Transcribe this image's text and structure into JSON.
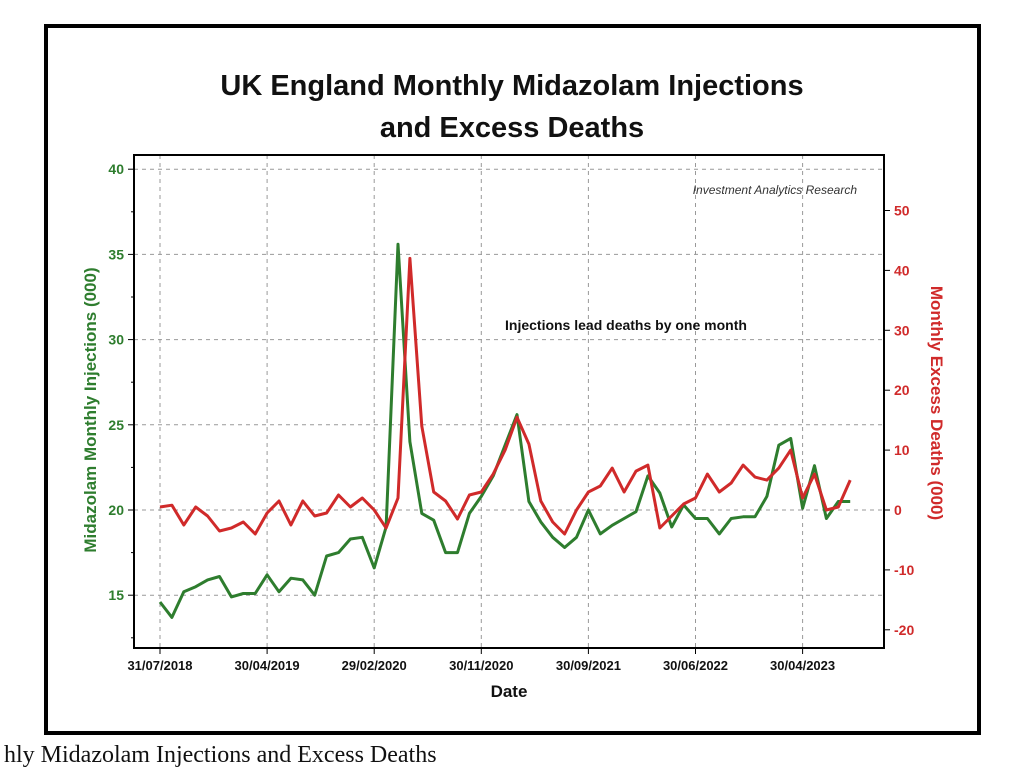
{
  "chart_data": {
    "type": "line",
    "title": [
      "UK England Monthly Midazolam Injections",
      "and Excess Deaths"
    ],
    "xlabel": "Date",
    "ylabel_left": "Midazolam Monthly Injections (000)",
    "ylabel_right": "Monthly Excess Deaths (000)",
    "ylim_left": [
      12,
      41
    ],
    "ylim_right": [
      -23,
      59
    ],
    "yticks_left": [
      15,
      20,
      25,
      30,
      35,
      40
    ],
    "yticks_right": [
      -20,
      -10,
      0,
      10,
      20,
      30,
      40,
      50
    ],
    "xtick_labels": [
      "31/07/2018",
      "30/04/2019",
      "29/02/2020",
      "30/11/2020",
      "30/09/2021",
      "30/06/2022",
      "30/04/2023"
    ],
    "grid": true,
    "annotations": [
      "Investment Analytics Research",
      "Injections lead deaths by one month"
    ],
    "x": [
      "2018-07",
      "2018-08",
      "2018-09",
      "2018-10",
      "2018-11",
      "2018-12",
      "2019-01",
      "2019-02",
      "2019-03",
      "2019-04",
      "2019-05",
      "2019-06",
      "2019-07",
      "2019-08",
      "2019-09",
      "2019-10",
      "2019-11",
      "2019-12",
      "2020-01",
      "2020-02",
      "2020-03",
      "2020-04",
      "2020-05",
      "2020-06",
      "2020-07",
      "2020-08",
      "2020-09",
      "2020-10",
      "2020-11",
      "2020-12",
      "2021-01",
      "2021-02",
      "2021-03",
      "2021-04",
      "2021-05",
      "2021-06",
      "2021-07",
      "2021-08",
      "2021-09",
      "2021-10",
      "2021-11",
      "2021-12",
      "2022-01",
      "2022-02",
      "2022-03",
      "2022-04",
      "2022-05",
      "2022-06",
      "2022-07",
      "2022-08",
      "2022-09",
      "2022-10",
      "2022-11",
      "2022-12",
      "2023-01",
      "2023-02",
      "2023-03",
      "2023-04",
      "2023-05"
    ],
    "series": [
      {
        "axis": "left",
        "color": "#2e7d2e",
        "values": [
          14.6,
          13.7,
          15.2,
          15.5,
          15.9,
          16.1,
          14.9,
          15.1,
          15.1,
          16.2,
          15.2,
          16.0,
          15.9,
          15.0,
          17.3,
          17.5,
          18.3,
          18.4,
          16.6,
          19.0,
          35.6,
          24.0,
          19.8,
          19.4,
          17.5,
          17.5,
          19.8,
          20.8,
          22.0,
          23.8,
          25.6,
          20.5,
          19.3,
          18.4,
          17.8,
          18.4,
          20.0,
          18.6,
          19.1,
          19.5,
          19.9,
          22.0,
          21.0,
          19.0,
          20.3,
          19.5,
          19.5,
          18.6,
          19.5,
          19.6,
          19.6,
          20.8,
          23.8,
          24.2,
          20.1,
          22.6,
          19.5,
          20.5,
          20.5
        ]
      },
      {
        "axis": "right",
        "color": "#d02a2a",
        "values": [
          0.5,
          0.8,
          -2.5,
          0.5,
          -1,
          -3.5,
          -3,
          -2,
          -4,
          -0.5,
          1.5,
          -2.5,
          1.5,
          -1,
          -0.5,
          2.5,
          0.5,
          2,
          0,
          -3,
          2,
          42,
          14,
          3,
          1.5,
          -1.5,
          2.5,
          3,
          6,
          10,
          15.5,
          11,
          1.5,
          -2,
          -4,
          0,
          3,
          4,
          7,
          3,
          6.5,
          7.5,
          -3,
          -1,
          1,
          2,
          6,
          3,
          4.5,
          7.5,
          5.5,
          5,
          7,
          10,
          2,
          6,
          0,
          0.5,
          5
        ]
      }
    ]
  },
  "caption": "hly Midazolam Injections and Excess Deaths"
}
